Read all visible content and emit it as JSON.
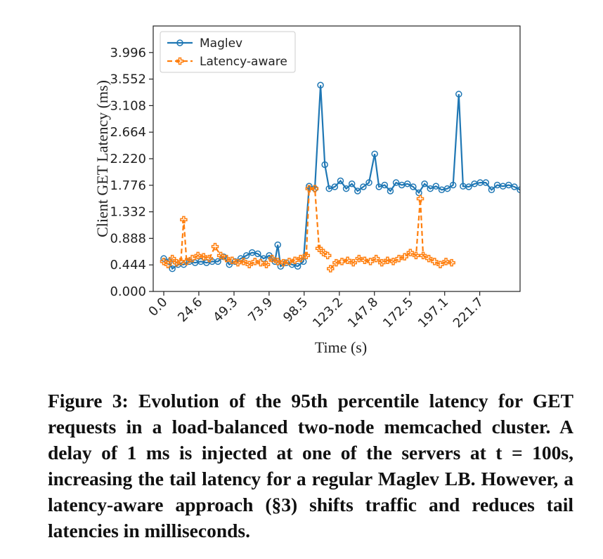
{
  "chart_data": {
    "type": "line",
    "xlabel": "Time (s)",
    "ylabel": "Client GET Latency (ms)",
    "xlim": [
      -7.4,
      250
    ],
    "ylim": [
      0,
      4.44
    ],
    "xticks": [
      {
        "value": 0,
        "label": "0.0"
      },
      24.6,
      49.3,
      73.9,
      98.5,
      123.2,
      147.8,
      172.5,
      197.1,
      221.7
    ],
    "yticks": [
      {
        "value": 0,
        "label": "0.000"
      },
      0.444,
      0.888,
      1.332,
      1.776,
      {
        "value": 2.22,
        "label": "2.220"
      },
      2.664,
      3.108,
      3.552,
      3.996
    ],
    "legend": "upper left",
    "series": [
      {
        "name": "Maglev",
        "color": "#1f77b4",
        "marker": "circle",
        "dashed": false,
        "x": [
          0,
          4,
          6,
          10,
          14,
          18,
          22,
          26,
          30,
          34,
          38,
          42,
          46,
          50,
          54,
          58,
          62,
          66,
          70,
          74,
          78,
          80,
          82,
          86,
          90,
          94,
          98,
          102,
          106,
          110,
          113,
          116,
          120,
          124,
          128,
          132,
          136,
          140,
          144,
          148,
          151,
          155,
          159,
          163,
          167,
          171,
          175,
          179,
          183,
          187,
          191,
          195,
          199,
          203,
          207,
          210,
          214,
          218,
          222,
          226,
          230,
          234,
          238,
          242,
          246,
          250
        ],
        "values": [
          0.55,
          0.5,
          0.38,
          0.45,
          0.45,
          0.5,
          0.48,
          0.5,
          0.48,
          0.5,
          0.5,
          0.58,
          0.45,
          0.5,
          0.55,
          0.6,
          0.65,
          0.63,
          0.55,
          0.6,
          0.5,
          0.78,
          0.42,
          0.48,
          0.45,
          0.42,
          0.5,
          1.76,
          1.72,
          3.45,
          2.12,
          1.72,
          1.75,
          1.85,
          1.72,
          1.8,
          1.68,
          1.75,
          1.82,
          2.3,
          1.75,
          1.78,
          1.68,
          1.82,
          1.78,
          1.8,
          1.75,
          1.65,
          1.8,
          1.72,
          1.76,
          1.7,
          1.72,
          1.78,
          3.3,
          1.76,
          1.75,
          1.8,
          1.82,
          1.82,
          1.7,
          1.78,
          1.76,
          1.78,
          1.75,
          1.7
        ]
      },
      {
        "name": "Latency-aware",
        "color": "#ff7f0e",
        "marker": "plus",
        "dashed": true,
        "x": [
          0,
          3,
          6,
          9,
          12,
          14,
          16,
          20,
          24,
          28,
          32,
          36,
          40,
          44,
          48,
          52,
          56,
          60,
          64,
          68,
          72,
          76,
          80,
          84,
          88,
          92,
          96,
          100,
          102,
          106,
          109,
          112,
          115,
          116,
          117,
          121,
          125,
          129,
          133,
          137,
          141,
          145,
          149,
          153,
          157,
          161,
          165,
          169,
          173,
          177,
          180,
          182,
          186,
          190,
          194,
          198,
          202
        ],
        "values": [
          0.5,
          0.45,
          0.55,
          0.48,
          0.5,
          1.2,
          0.5,
          0.55,
          0.6,
          0.58,
          0.55,
          0.75,
          0.6,
          0.55,
          0.52,
          0.48,
          0.5,
          0.45,
          0.5,
          0.48,
          0.45,
          0.55,
          0.5,
          0.48,
          0.5,
          0.52,
          0.55,
          0.6,
          1.72,
          1.72,
          0.72,
          0.65,
          0.6,
          null,
          0.38,
          0.48,
          0.5,
          0.52,
          0.48,
          0.55,
          0.52,
          0.5,
          0.55,
          0.48,
          0.52,
          0.5,
          0.55,
          0.58,
          0.65,
          0.6,
          1.55,
          0.6,
          0.55,
          0.5,
          0.45,
          0.5,
          0.48
        ]
      }
    ]
  },
  "caption": "Figure 3: Evolution of the 95th percentile latency for GET requests in a load-balanced two-node memcached cluster. A delay of 1 ms is injected at one of the servers at t = 100s, increasing the tail latency for a regular Maglev LB. However, a latency-aware approach (§3) shifts traffic and reduces tail latencies in milliseconds."
}
